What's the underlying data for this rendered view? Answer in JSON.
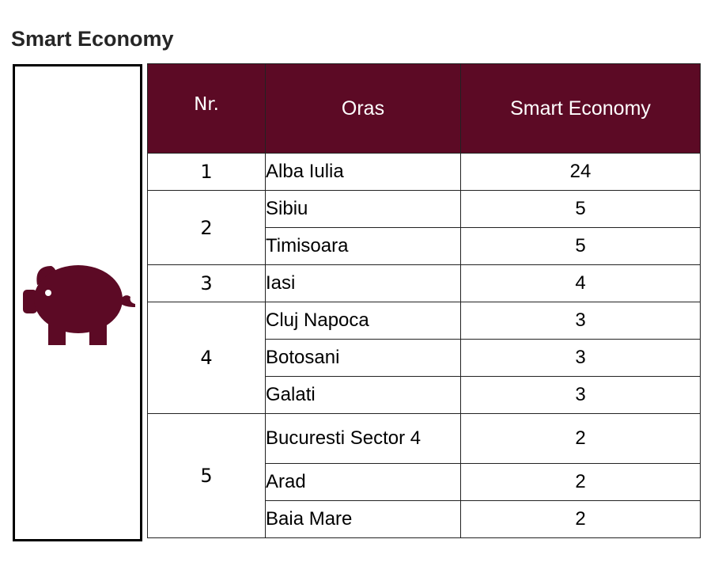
{
  "page_title": "Smart Economy",
  "icon": {
    "name": "piggy-bank-icon",
    "color": "#5c0a25"
  },
  "table": {
    "headers": {
      "nr": "Nr.",
      "city": "Oras",
      "score": "Smart Economy"
    },
    "header_color": "#5c0a25",
    "groups": [
      {
        "rank": "1",
        "rows": [
          {
            "city": "Alba Iulia",
            "score": "24"
          }
        ]
      },
      {
        "rank": "2",
        "rows": [
          {
            "city": "Sibiu",
            "score": "5"
          },
          {
            "city": "Timisoara",
            "score": "5"
          }
        ]
      },
      {
        "rank": "3",
        "rows": [
          {
            "city": "Iasi",
            "score": "4"
          }
        ]
      },
      {
        "rank": "4",
        "rows": [
          {
            "city": "Cluj Napoca",
            "score": "3"
          },
          {
            "city": "Botosani",
            "score": "3"
          },
          {
            "city": "Galati",
            "score": "3"
          }
        ]
      },
      {
        "rank": "5",
        "rows": [
          {
            "city": "Bucuresti Sector 4",
            "score": "2"
          },
          {
            "city": "Arad",
            "score": "2"
          },
          {
            "city": "Baia Mare",
            "score": "2"
          }
        ]
      }
    ]
  }
}
